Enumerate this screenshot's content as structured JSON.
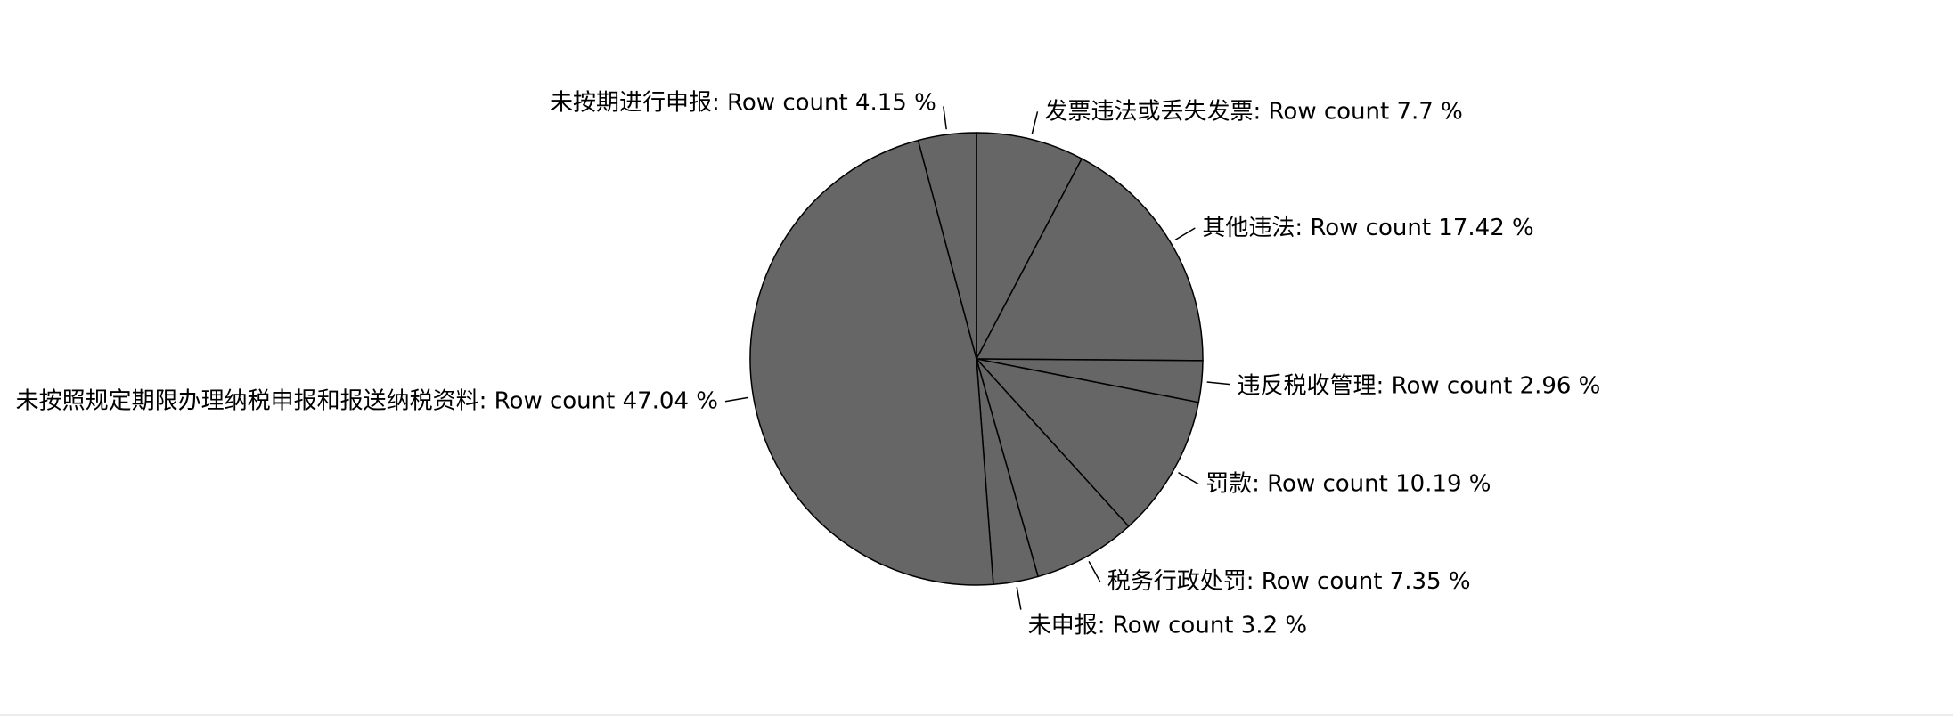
{
  "chart_data": {
    "type": "pie",
    "title": "",
    "slice_color": "#666666",
    "edge_color": "#000000",
    "slices": [
      {
        "label": "发票违法或丢失发票: Row count 7.7 %",
        "value": 7.7
      },
      {
        "label": "其他违法: Row count 17.42 %",
        "value": 17.42
      },
      {
        "label": "违反税收管理: Row count 2.96 %",
        "value": 2.96
      },
      {
        "label": "罚款: Row count 10.19 %",
        "value": 10.19
      },
      {
        "label": "税务行政处罚: Row count 7.35 %",
        "value": 7.35
      },
      {
        "label": "未申报: Row count 3.2 %",
        "value": 3.2
      },
      {
        "label": "未按照规定期限办理纳税申报和报送纳税资料: Row count 47.04 %",
        "value": 47.04
      },
      {
        "label": "未按期进行申报: Row count 4.15 %",
        "value": 4.15
      }
    ]
  }
}
